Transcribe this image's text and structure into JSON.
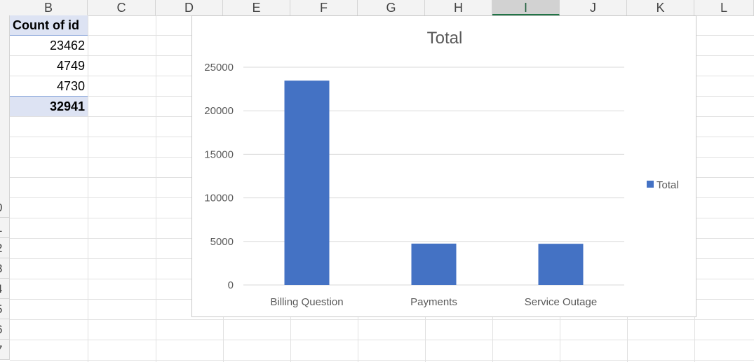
{
  "columns": [
    "B",
    "C",
    "D",
    "E",
    "F",
    "G",
    "H",
    "I",
    "J",
    "K",
    "L"
  ],
  "selected_column": "I",
  "row_numbers": [
    "0",
    "1",
    "2",
    "3",
    "4",
    "5",
    "6",
    "7"
  ],
  "pivot": {
    "header": "Count of id",
    "values": [
      "23462",
      "4749",
      "4730"
    ],
    "total": "32941"
  },
  "colors": {
    "bar": "#4472c4",
    "accent": "#217346",
    "pivot_fill": "#dde3f3"
  },
  "chart_data": {
    "type": "bar",
    "title": "Total",
    "categories": [
      "Billing Question",
      "Payments",
      "Service Outage"
    ],
    "series": [
      {
        "name": "Total",
        "values": [
          23462,
          4749,
          4730
        ]
      }
    ],
    "ylim": [
      0,
      25000
    ],
    "yticks": [
      "0",
      "5000",
      "10000",
      "15000",
      "20000",
      "25000"
    ],
    "grid": true,
    "legend": "right"
  }
}
